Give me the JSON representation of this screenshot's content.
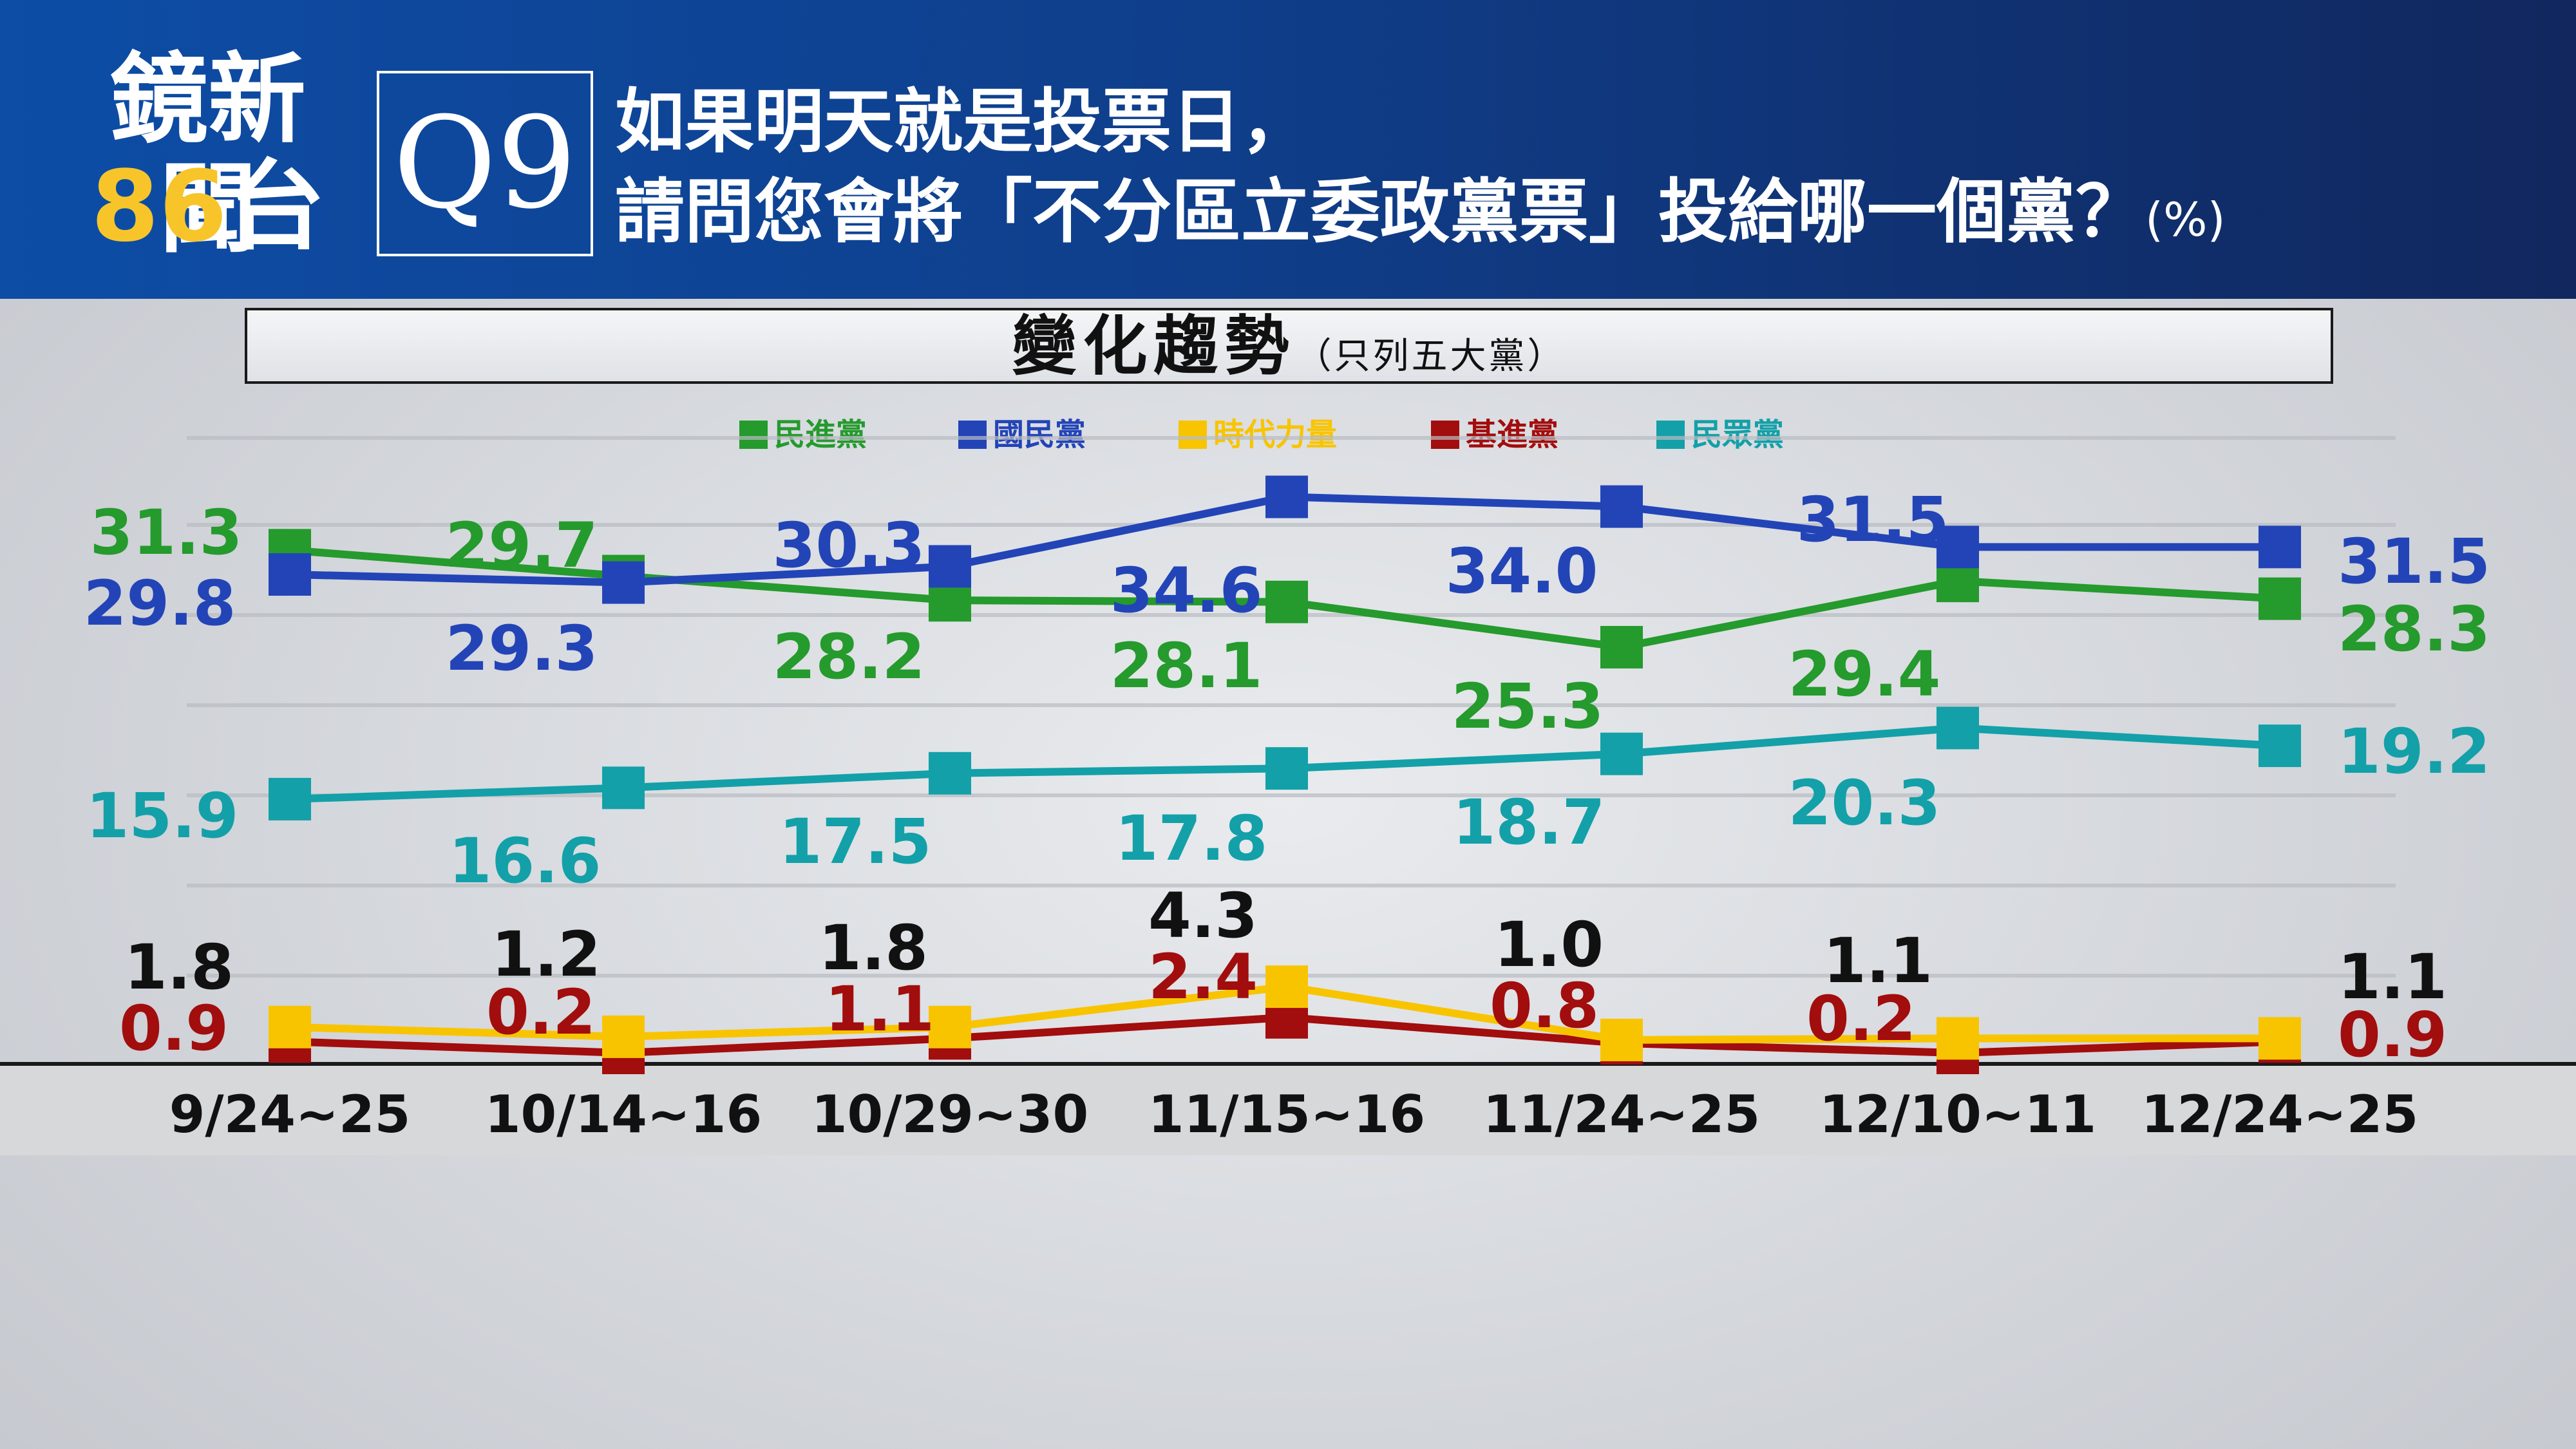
{
  "header": {
    "logo_line1": "鏡新聞",
    "logo_num": "86",
    "logo_tai": "台",
    "question_no": "Q9",
    "question_line1": "如果明天就是投票日，",
    "question_line2": "請問您會將「不分區立委政黨票」投給哪一個黨？",
    "question_unit": "(%)"
  },
  "trend": {
    "title": "變化趨勢",
    "subtitle": "（只列五大黨）"
  },
  "colors": {
    "dpp": "#259a2d",
    "kmt": "#2344b7",
    "npp": "#f8c400",
    "tsp": "#a20d0d",
    "tpp": "#13a0a8",
    "black_label": "#111111"
  },
  "chart_data": {
    "type": "line",
    "title": "變化趨勢",
    "subtitle": "（只列五大黨）",
    "unit": "%",
    "categories": [
      "9/24~25",
      "10/14~16",
      "10/29~30",
      "11/15~16",
      "11/24~25",
      "12/10~11",
      "12/24~25"
    ],
    "ylim": [
      0,
      40
    ],
    "legend_position": "top-center",
    "series": [
      {
        "name": "民進黨",
        "color": "#259a2d",
        "values": [
          31.3,
          29.7,
          28.2,
          28.1,
          25.3,
          29.4,
          28.3
        ]
      },
      {
        "name": "國民黨",
        "color": "#2344b7",
        "values": [
          29.8,
          29.3,
          30.3,
          34.6,
          34.0,
          31.5,
          31.5
        ]
      },
      {
        "name": "時代力量",
        "color": "#f8c400",
        "values": [
          1.8,
          1.2,
          1.8,
          4.3,
          1.0,
          1.1,
          1.1
        ]
      },
      {
        "name": "基進黨",
        "color": "#a20d0d",
        "values": [
          0.9,
          0.2,
          1.1,
          2.4,
          0.8,
          0.2,
          0.9
        ]
      },
      {
        "name": "民眾黨",
        "color": "#13a0a8",
        "values": [
          15.9,
          16.6,
          17.5,
          17.8,
          18.7,
          20.3,
          19.2
        ]
      }
    ]
  }
}
